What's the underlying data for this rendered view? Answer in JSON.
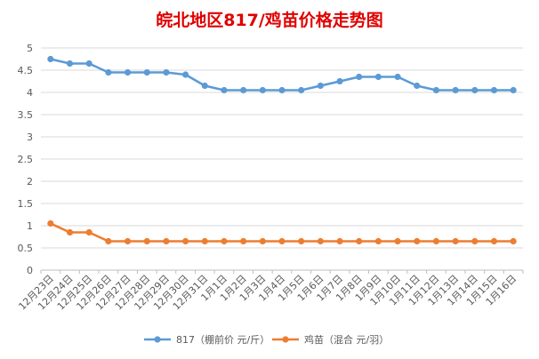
{
  "chart_data": {
    "type": "line",
    "title": "皖北地区817/鸡苗价格走势图",
    "title_color": "#e00000",
    "categories": [
      "12月23日",
      "12月24日",
      "12月25日",
      "12月26日",
      "12月27日",
      "12月28日",
      "12月29日",
      "12月30日",
      "12月31日",
      "1月1日",
      "1月2日",
      "1月3日",
      "1月4日",
      "1月5日",
      "1月6日",
      "1月7日",
      "1月8日",
      "1月9日",
      "1月10日",
      "1月11日",
      "1月12日",
      "1月13日",
      "1月14日",
      "1月15日",
      "1月16日"
    ],
    "y_ticks": [
      "0",
      "0.5",
      "1",
      "1.5",
      "2",
      "2.5",
      "3",
      "3.5",
      "4",
      "4.5",
      "5"
    ],
    "ylim": [
      0,
      5
    ],
    "grid": true,
    "legend_position": "bottom",
    "series": [
      {
        "name": "817（棚前价 元/斤）",
        "color": "#5b9bd5",
        "values": [
          4.75,
          4.65,
          4.65,
          4.45,
          4.45,
          4.45,
          4.45,
          4.4,
          4.15,
          4.05,
          4.05,
          4.05,
          4.05,
          4.05,
          4.15,
          4.25,
          4.35,
          4.35,
          4.35,
          4.15,
          4.05,
          4.05,
          4.05,
          4.05,
          4.05
        ]
      },
      {
        "name": "鸡苗（混合 元/羽）",
        "color": "#ed7d31",
        "values": [
          1.05,
          0.85,
          0.85,
          0.65,
          0.65,
          0.65,
          0.65,
          0.65,
          0.65,
          0.65,
          0.65,
          0.65,
          0.65,
          0.65,
          0.65,
          0.65,
          0.65,
          0.65,
          0.65,
          0.65,
          0.65,
          0.65,
          0.65,
          0.65,
          0.65
        ]
      }
    ]
  }
}
